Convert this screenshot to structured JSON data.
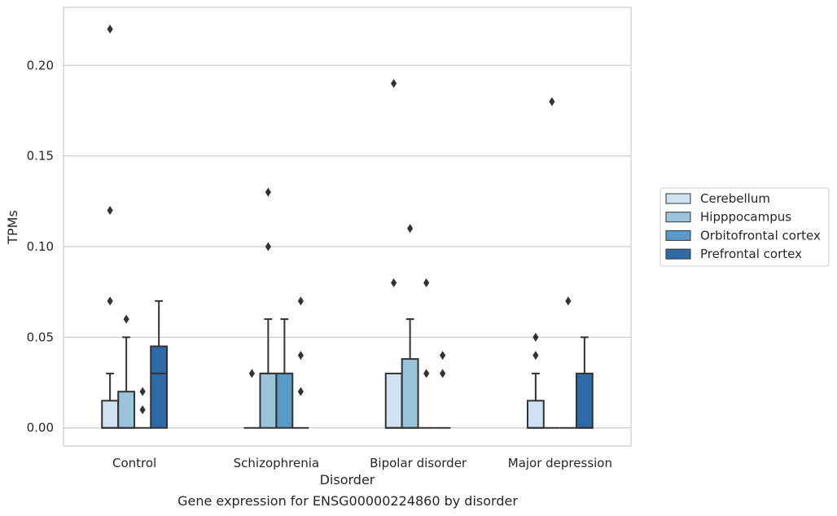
{
  "caption": "Gene expression for ENSG00000224860 by disorder",
  "chart_data": {
    "type": "box",
    "xlabel": "Disorder",
    "ylabel": "TPMs",
    "ylim": [
      -0.01,
      0.232
    ],
    "yticks": [
      0.0,
      0.05,
      0.1,
      0.15,
      0.2
    ],
    "ytick_labels": [
      "0.00",
      "0.05",
      "0.10",
      "0.15",
      "0.20"
    ],
    "categories": [
      "Control",
      "Schizophrenia",
      "Bipolar disorder",
      "Major depression"
    ],
    "grid": "horizontal",
    "legend_position": "right",
    "series": [
      {
        "name": "Cerebellum",
        "color": "#d0e1f2",
        "boxes": [
          {
            "q1": 0.0,
            "median": 0.0,
            "q3": 0.015,
            "whisker_low": 0.0,
            "whisker_high": 0.03,
            "outliers": [
              0.07,
              0.12,
              0.22
            ]
          },
          {
            "q1": 0.0,
            "median": 0.0,
            "q3": 0.0,
            "whisker_low": 0.0,
            "whisker_high": 0.0,
            "outliers": [
              0.03
            ]
          },
          {
            "q1": 0.0,
            "median": 0.0,
            "q3": 0.03,
            "whisker_low": 0.0,
            "whisker_high": 0.03,
            "outliers": [
              0.08,
              0.19
            ]
          },
          {
            "q1": 0.0,
            "median": 0.0,
            "q3": 0.015,
            "whisker_low": 0.0,
            "whisker_high": 0.03,
            "outliers": [
              0.04,
              0.05
            ]
          }
        ]
      },
      {
        "name": "Hipppocampus",
        "color": "#9ac3dc",
        "boxes": [
          {
            "q1": 0.0,
            "median": 0.0,
            "q3": 0.02,
            "whisker_low": 0.0,
            "whisker_high": 0.05,
            "outliers": [
              0.06
            ]
          },
          {
            "q1": 0.0,
            "median": 0.03,
            "q3": 0.03,
            "whisker_low": 0.0,
            "whisker_high": 0.06,
            "outliers": [
              0.1,
              0.13
            ]
          },
          {
            "q1": 0.0,
            "median": 0.0,
            "q3": 0.038,
            "whisker_low": 0.0,
            "whisker_high": 0.06,
            "outliers": [
              0.11
            ]
          },
          {
            "q1": 0.0,
            "median": 0.0,
            "q3": 0.0,
            "whisker_low": 0.0,
            "whisker_high": 0.0,
            "outliers": [
              0.18
            ]
          }
        ]
      },
      {
        "name": "Orbitofrontal cortex",
        "color": "#5a9ac8",
        "boxes": [
          {
            "q1": 0.0,
            "median": 0.0,
            "q3": 0.0,
            "whisker_low": 0.0,
            "whisker_high": 0.0,
            "outliers": [
              0.01,
              0.02
            ]
          },
          {
            "q1": 0.0,
            "median": 0.03,
            "q3": 0.03,
            "whisker_low": 0.0,
            "whisker_high": 0.06,
            "outliers": []
          },
          {
            "q1": 0.0,
            "median": 0.0,
            "q3": 0.0,
            "whisker_low": 0.0,
            "whisker_high": 0.0,
            "outliers": [
              0.03,
              0.08
            ]
          },
          {
            "q1": 0.0,
            "median": 0.0,
            "q3": 0.0,
            "whisker_low": 0.0,
            "whisker_high": 0.0,
            "outliers": [
              0.07
            ]
          }
        ]
      },
      {
        "name": "Prefrontal cortex",
        "color": "#2e6aa6",
        "boxes": [
          {
            "q1": 0.0,
            "median": 0.03,
            "q3": 0.045,
            "whisker_low": 0.0,
            "whisker_high": 0.07,
            "outliers": []
          },
          {
            "q1": 0.0,
            "median": 0.0,
            "q3": 0.0,
            "whisker_low": 0.0,
            "whisker_high": 0.0,
            "outliers": [
              0.02,
              0.04,
              0.07
            ]
          },
          {
            "q1": 0.0,
            "median": 0.0,
            "q3": 0.0,
            "whisker_low": 0.0,
            "whisker_high": 0.0,
            "outliers": [
              0.03,
              0.04
            ]
          },
          {
            "q1": 0.0,
            "median": 0.0,
            "q3": 0.03,
            "whisker_low": 0.0,
            "whisker_high": 0.05,
            "outliers": []
          }
        ]
      }
    ]
  }
}
